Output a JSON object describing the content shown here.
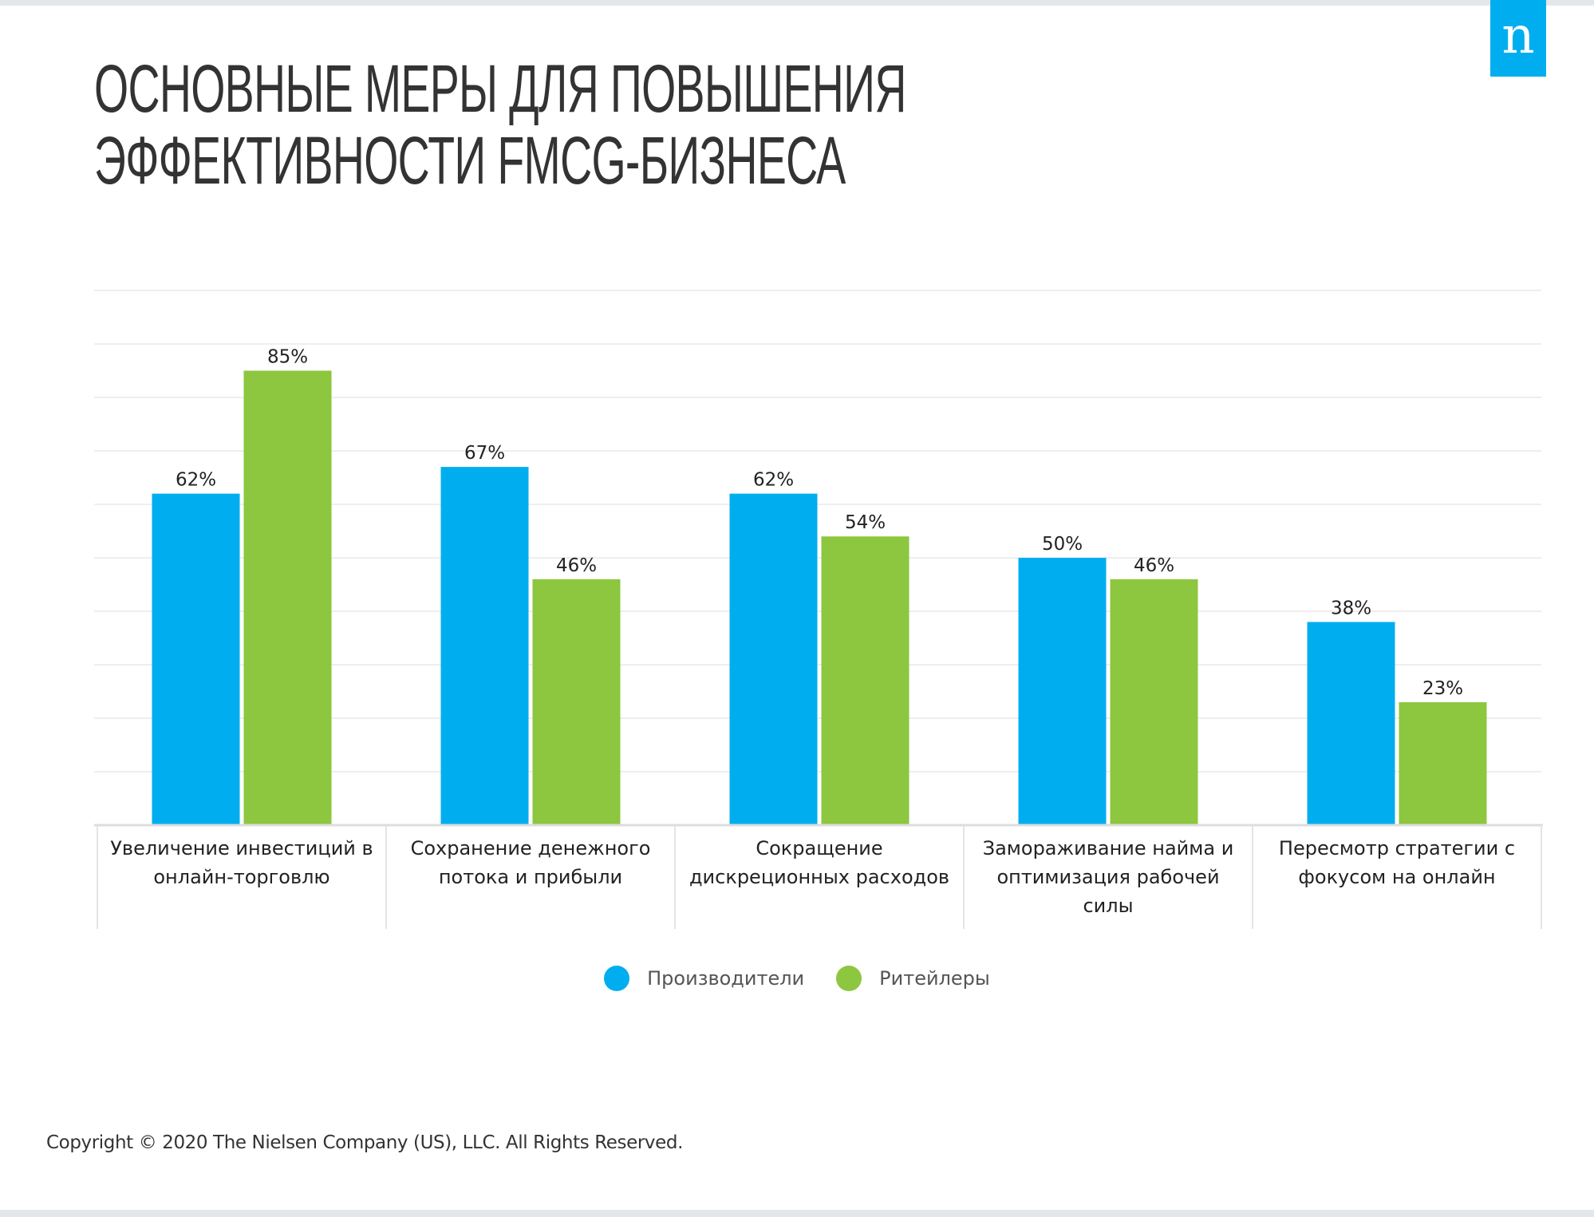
{
  "brand": {
    "logo_letter": "n",
    "logo_color": "#00aeef"
  },
  "title": {
    "line1": "ОСНОВНЫЕ МЕРЫ ДЛЯ ПОВЫШЕНИЯ",
    "line2": "ЭФФЕКТИВНОСТИ FMCG-БИЗНЕСА"
  },
  "legend": [
    {
      "label": "Производители",
      "color": "#00aeef"
    },
    {
      "label": "Ритейлеры",
      "color": "#8dc63f"
    }
  ],
  "footer": {
    "copyright": "Copyright © 2020 The Nielsen Company (US), LLC. All Rights Reserved."
  },
  "chart_data": {
    "type": "bar",
    "title": "ОСНОВНЫЕ МЕРЫ ДЛЯ ПОВЫШЕНИЯ ЭФФЕКТИВНОСТИ FMCG-БИЗНЕСА",
    "xlabel": "",
    "ylabel": "",
    "ylim": [
      0,
      100
    ],
    "grid": true,
    "grid_step": 10,
    "y_tick_labels_visible": false,
    "legend_position": "bottom-center",
    "value_format": "{v}%",
    "categories": [
      "Увеличение инвестиций в\nонлайн-торговлю",
      "Сохранение денежного\nпотока и прибыли",
      "Сокращение\nдискреционных расходов",
      "Замораживание найма и\nоптимизация рабочей\nсилы",
      "Пересмотр стратегии с\nфокусом на онлайн"
    ],
    "series": [
      {
        "name": "Производители",
        "color": "#00aeef",
        "values": [
          62,
          67,
          62,
          50,
          38
        ]
      },
      {
        "name": "Ритейлеры",
        "color": "#8dc63f",
        "values": [
          85,
          46,
          54,
          46,
          23
        ]
      }
    ]
  }
}
